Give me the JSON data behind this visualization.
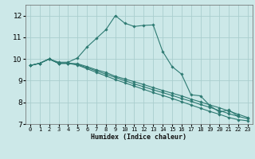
{
  "xlabel": "Humidex (Indice chaleur)",
  "bg_color": "#cce8e8",
  "grid_color": "#aacece",
  "line_color": "#2d7a72",
  "xlim": [
    -0.5,
    23.5
  ],
  "ylim": [
    7,
    12.5
  ],
  "yticks": [
    7,
    8,
    9,
    10,
    11,
    12
  ],
  "xticks": [
    0,
    1,
    2,
    3,
    4,
    5,
    6,
    7,
    8,
    9,
    10,
    11,
    12,
    13,
    14,
    15,
    16,
    17,
    18,
    19,
    20,
    21,
    22,
    23
  ],
  "lines": [
    {
      "x": [
        0,
        1,
        2,
        3,
        4,
        5,
        6,
        7,
        8,
        9,
        10,
        11,
        12,
        13,
        14,
        15,
        16,
        17,
        18,
        19,
        20,
        21,
        22
      ],
      "y": [
        9.7,
        9.8,
        10.0,
        9.85,
        9.85,
        10.05,
        10.55,
        10.95,
        11.35,
        12.0,
        11.65,
        11.5,
        11.55,
        11.57,
        10.35,
        9.65,
        9.3,
        8.35,
        8.3,
        7.85,
        7.55,
        7.65,
        7.35
      ]
    },
    {
      "x": [
        0,
        1,
        2,
        3,
        4,
        5,
        6,
        7,
        8,
        9,
        10,
        11,
        12,
        13,
        14,
        15,
        16,
        17,
        18,
        19,
        20,
        21,
        22,
        23
      ],
      "y": [
        9.7,
        9.8,
        10.0,
        9.8,
        9.8,
        9.78,
        9.65,
        9.5,
        9.38,
        9.2,
        9.08,
        8.95,
        8.82,
        8.68,
        8.55,
        8.42,
        8.3,
        8.15,
        8.02,
        7.88,
        7.75,
        7.6,
        7.45,
        7.3
      ]
    },
    {
      "x": [
        0,
        1,
        2,
        3,
        4,
        5,
        6,
        7,
        8,
        9,
        10,
        11,
        12,
        13,
        14,
        15,
        16,
        17,
        18,
        19,
        20,
        21,
        22,
        23
      ],
      "y": [
        9.7,
        9.8,
        10.0,
        9.8,
        9.8,
        9.75,
        9.6,
        9.45,
        9.3,
        9.15,
        9.0,
        8.85,
        8.72,
        8.58,
        8.45,
        8.32,
        8.18,
        8.05,
        7.9,
        7.77,
        7.62,
        7.48,
        7.35,
        7.25
      ]
    },
    {
      "x": [
        0,
        1,
        2,
        3,
        4,
        5,
        6,
        7,
        8,
        9,
        10,
        11,
        12,
        13,
        14,
        15,
        16,
        17,
        18,
        19,
        20,
        21,
        22,
        23
      ],
      "y": [
        9.7,
        9.8,
        10.0,
        9.8,
        9.8,
        9.72,
        9.55,
        9.38,
        9.22,
        9.05,
        8.9,
        8.75,
        8.6,
        8.45,
        8.32,
        8.18,
        8.03,
        7.88,
        7.73,
        7.58,
        7.45,
        7.3,
        7.2,
        7.15
      ]
    }
  ]
}
